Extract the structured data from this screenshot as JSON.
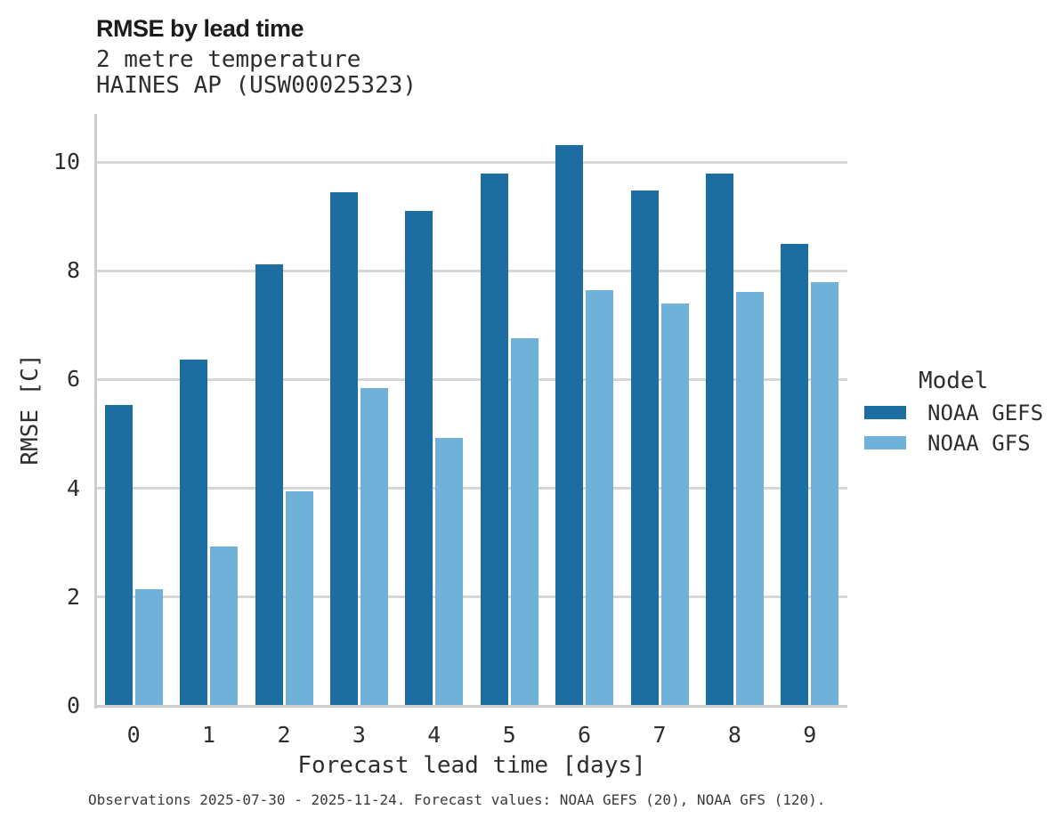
{
  "chart_data": {
    "type": "bar",
    "title": "RMSE by lead time",
    "subtitle_line1": "2 metre temperature",
    "subtitle_line2": "HAINES AP (USW00025323)",
    "categories": [
      "0",
      "1",
      "2",
      "3",
      "4",
      "5",
      "6",
      "7",
      "8",
      "9"
    ],
    "series": [
      {
        "name": "NOAA GEFS",
        "color": "#1c6da2",
        "values": [
          5.54,
          6.37,
          8.11,
          9.45,
          9.1,
          9.79,
          10.31,
          9.47,
          9.78,
          8.5
        ]
      },
      {
        "name": "NOAA GFS",
        "color": "#6fb1d8",
        "values": [
          2.15,
          2.93,
          3.94,
          5.84,
          4.93,
          6.76,
          7.64,
          7.4,
          7.61,
          7.79
        ]
      }
    ],
    "xlabel": "Forecast lead time [days]",
    "ylabel": "RMSE [C]",
    "ylim": [
      0,
      10.87
    ],
    "y_ticks": [
      0,
      2,
      4,
      6,
      8,
      10
    ],
    "grid": "horizontal-only",
    "legend_title": "Model",
    "legend_position": "right",
    "caption": "Observations 2025-07-30 - 2025-11-24. Forecast values: NOAA GEFS (20), NOAA GFS (120)."
  }
}
